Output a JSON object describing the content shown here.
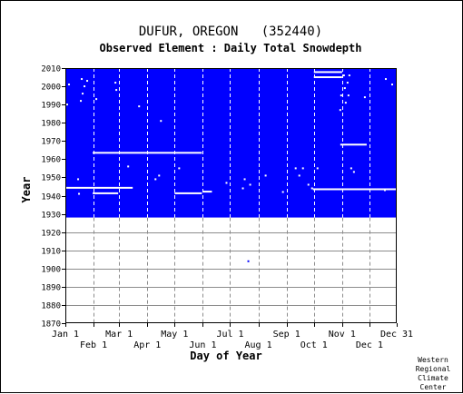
{
  "chart_data": {
    "type": "scatter",
    "title": "DUFUR, OREGON   (352440)",
    "subtitle": "Observed Element : Daily Total Snowdepth",
    "xlabel": "Day of Year",
    "ylabel": "Year",
    "ylim": [
      1870,
      2010
    ],
    "xlim": [
      1,
      365
    ],
    "grid": true,
    "colors": {
      "missing": "#0000ff",
      "present": "#ffffff",
      "grid": "#8c8c8c",
      "background": "#ffffff"
    },
    "record_start_year": 1928,
    "y_ticks": [
      "1870",
      "1880",
      "1890",
      "1900",
      "1910",
      "1920",
      "1930",
      "1940",
      "1950",
      "1960",
      "1970",
      "1980",
      "1990",
      "2000",
      "2010"
    ],
    "x_ticks_upper": [
      {
        "day": 1,
        "label": "Jan 1"
      },
      {
        "day": 60,
        "label": "Mar 1"
      },
      {
        "day": 121,
        "label": "May 1"
      },
      {
        "day": 182,
        "label": "Jul 1"
      },
      {
        "day": 244,
        "label": "Sep 1"
      },
      {
        "day": 305,
        "label": "Nov 1"
      },
      {
        "day": 365,
        "label": "Dec 31"
      }
    ],
    "x_ticks_lower": [
      {
        "day": 32,
        "label": "Feb 1"
      },
      {
        "day": 91,
        "label": "Apr 1"
      },
      {
        "day": 152,
        "label": "Jun 1"
      },
      {
        "day": 213,
        "label": "Aug 1"
      },
      {
        "day": 274,
        "label": "Oct 1"
      },
      {
        "day": 335,
        "label": "Dec 1"
      }
    ],
    "present_segments": [
      {
        "year": 2007.8,
        "start_day": 274,
        "end_day": 305
      },
      {
        "year": 2005,
        "start_day": 274,
        "end_day": 305
      },
      {
        "year": 1968,
        "start_day": 303,
        "end_day": 332
      },
      {
        "year": 1963.5,
        "start_day": 31,
        "end_day": 151
      },
      {
        "year": 1944.3,
        "start_day": 1,
        "end_day": 75
      },
      {
        "year": 1943.5,
        "start_day": 273,
        "end_day": 365
      },
      {
        "year": 1942.2,
        "start_day": 152,
        "end_day": 162
      },
      {
        "year": 1941.3,
        "start_day": 31,
        "end_day": 59
      },
      {
        "year": 1941.3,
        "start_day": 121,
        "end_day": 151
      }
    ],
    "present_points": [
      {
        "day": 5,
        "year": 2001
      },
      {
        "day": 19,
        "year": 2004
      },
      {
        "day": 22,
        "year": 2000
      },
      {
        "day": 25,
        "year": 2003
      },
      {
        "day": 20,
        "year": 1996
      },
      {
        "day": 18,
        "year": 1992
      },
      {
        "day": 35,
        "year": 1993
      },
      {
        "day": 56,
        "year": 2002
      },
      {
        "day": 57,
        "year": 1998
      },
      {
        "day": 3,
        "year": 1990
      },
      {
        "day": 82,
        "year": 1989
      },
      {
        "day": 106,
        "year": 1981
      },
      {
        "day": 70,
        "year": 1956
      },
      {
        "day": 100,
        "year": 1949
      },
      {
        "day": 104,
        "year": 1951
      },
      {
        "day": 126,
        "year": 1955
      },
      {
        "day": 15,
        "year": 1949
      },
      {
        "day": 16,
        "year": 1941
      },
      {
        "day": 178,
        "year": 1947
      },
      {
        "day": 198,
        "year": 1949
      },
      {
        "day": 196,
        "year": 1944
      },
      {
        "day": 204,
        "year": 1946
      },
      {
        "day": 221,
        "year": 1951
      },
      {
        "day": 240,
        "year": 1942
      },
      {
        "day": 254,
        "year": 1955
      },
      {
        "day": 258,
        "year": 1951
      },
      {
        "day": 262,
        "year": 1955
      },
      {
        "day": 268,
        "year": 1946
      },
      {
        "day": 272,
        "year": 1944
      },
      {
        "day": 278,
        "year": 1955
      },
      {
        "day": 315,
        "year": 1955
      },
      {
        "day": 318,
        "year": 1953
      },
      {
        "day": 307,
        "year": 2006
      },
      {
        "day": 313,
        "year": 2006
      },
      {
        "day": 311,
        "year": 2002
      },
      {
        "day": 308,
        "year": 1999
      },
      {
        "day": 312,
        "year": 1995
      },
      {
        "day": 304,
        "year": 1995
      },
      {
        "day": 309,
        "year": 1991
      },
      {
        "day": 303,
        "year": 1987
      },
      {
        "day": 330,
        "year": 1994
      },
      {
        "day": 353,
        "year": 2004
      },
      {
        "day": 360,
        "year": 2001
      },
      {
        "day": 352,
        "year": 1943
      },
      {
        "day": 202,
        "year": 1904
      }
    ],
    "credit": [
      "Western",
      "Regional",
      "Climate",
      "Center"
    ]
  }
}
